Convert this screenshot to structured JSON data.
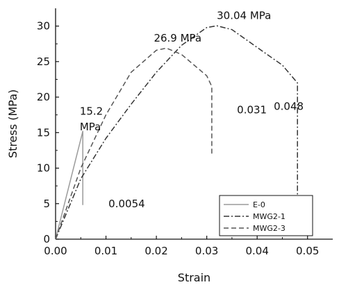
{
  "chart_data": {
    "type": "line",
    "xlabel": "Strain",
    "ylabel": "Stress (MPa)",
    "xlim": [
      0,
      0.055
    ],
    "ylim": [
      0,
      32.5
    ],
    "xticks": [
      0.0,
      0.01,
      0.02,
      0.03,
      0.04,
      0.05
    ],
    "xtick_labels": [
      "0.00",
      "0.01",
      "0.02",
      "0.03",
      "0.04",
      "0.05"
    ],
    "yticks": [
      0,
      5,
      10,
      15,
      20,
      25,
      30
    ],
    "ytick_labels": [
      "0",
      "5",
      "10",
      "15",
      "20",
      "25",
      "30"
    ],
    "grid": false,
    "legend_position": "bottom-right",
    "series": [
      {
        "name": "E-0",
        "line_style": "solid",
        "color": "#9a9a9a",
        "points": [
          [
            0.0,
            0.0
          ],
          [
            0.0054,
            15.2
          ],
          [
            0.0054,
            4.8
          ]
        ]
      },
      {
        "name": "MWG2-1",
        "line_style": "dash-dot",
        "color": "#333333",
        "points": [
          [
            0.0,
            0.0
          ],
          [
            0.005,
            8.5
          ],
          [
            0.01,
            14.2
          ],
          [
            0.015,
            19.0
          ],
          [
            0.02,
            23.5
          ],
          [
            0.025,
            27.3
          ],
          [
            0.03,
            29.8
          ],
          [
            0.032,
            30.04
          ],
          [
            0.035,
            29.5
          ],
          [
            0.04,
            27.0
          ],
          [
            0.045,
            24.5
          ],
          [
            0.048,
            22.0
          ],
          [
            0.048,
            3.0
          ]
        ]
      },
      {
        "name": "MWG2-3",
        "line_style": "dashed",
        "color": "#555555",
        "points": [
          [
            0.0,
            0.0
          ],
          [
            0.005,
            10.0
          ],
          [
            0.01,
            17.5
          ],
          [
            0.015,
            23.5
          ],
          [
            0.02,
            26.6
          ],
          [
            0.022,
            26.9
          ],
          [
            0.025,
            26.0
          ],
          [
            0.03,
            23.0
          ],
          [
            0.031,
            21.5
          ],
          [
            0.031,
            12.0
          ]
        ]
      }
    ],
    "annotations": [
      {
        "id": "e0-peak-line1",
        "text": "15.2",
        "x": 0.0048,
        "y": 17.5
      },
      {
        "id": "e0-peak-line2",
        "text": "MPa",
        "x": 0.0048,
        "y": 15.3
      },
      {
        "id": "e0-strain",
        "text": "0.0054",
        "x": 0.0105,
        "y": 4.5
      },
      {
        "id": "mwg23-peak",
        "text": "26.9 MPa",
        "x": 0.0195,
        "y": 27.8
      },
      {
        "id": "mwg21-peak",
        "text": "30.04 MPa",
        "x": 0.032,
        "y": 31.0
      },
      {
        "id": "mwg23-strain",
        "text": "0.031",
        "x": 0.036,
        "y": 17.7
      },
      {
        "id": "mwg21-strain",
        "text": "0.048",
        "x": 0.0433,
        "y": 18.2
      }
    ]
  }
}
